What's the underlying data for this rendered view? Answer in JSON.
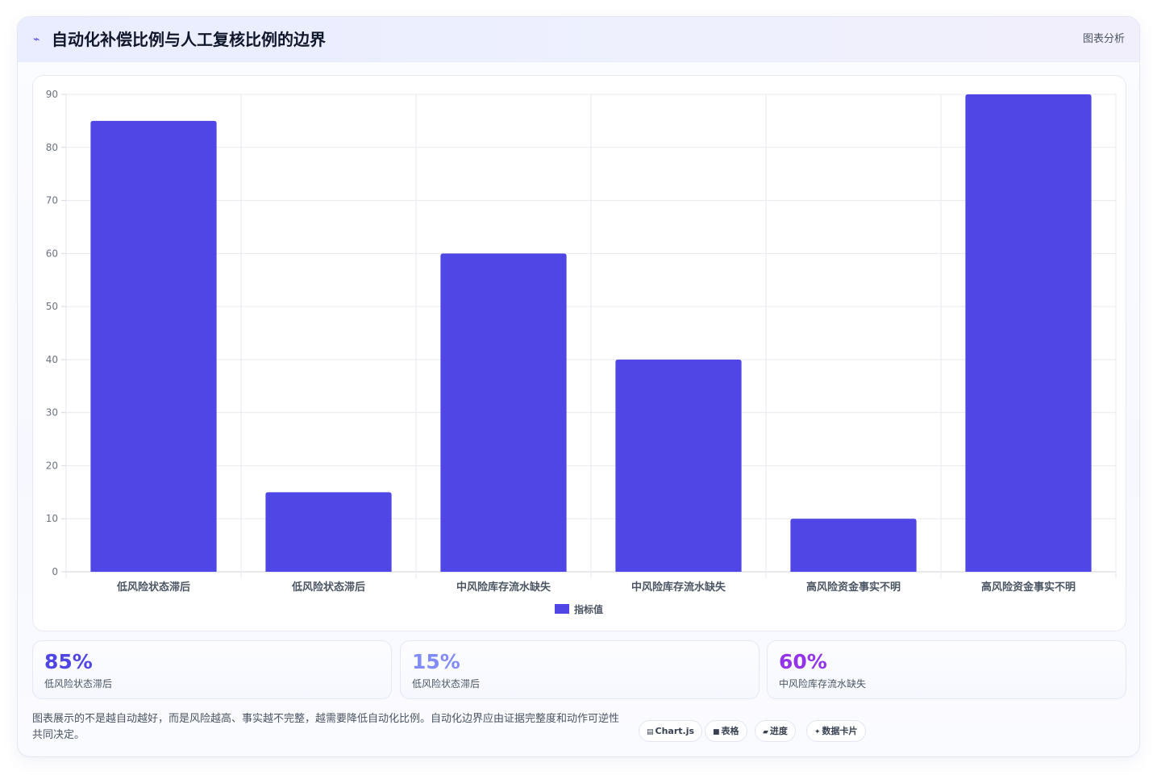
{
  "header": {
    "icon": "pulse-icon",
    "icon_glyph": "⌁",
    "title": "自动化补偿比例与人工复核比例的边界",
    "tag": "图表分析"
  },
  "chart_data": {
    "type": "bar",
    "categories": [
      "低风险状态滞后",
      "低风险状态滞后",
      "中风险库存流水缺失",
      "中风险库存流水缺失",
      "高风险资金事实不明",
      "高风险资金事实不明"
    ],
    "series": [
      {
        "name": "指标值",
        "values": [
          85,
          15,
          60,
          40,
          10,
          90
        ],
        "color": "#5046e5"
      }
    ],
    "ylim": [
      0,
      90
    ],
    "yticks": [
      0,
      10,
      20,
      30,
      40,
      50,
      60,
      70,
      80,
      90
    ],
    "grid": true,
    "legend": "bottom"
  },
  "stats": [
    {
      "value": "85%",
      "label": "低风险状态滞后",
      "color": "#4f46e5"
    },
    {
      "value": "15%",
      "label": "低风险状态滞后",
      "color": "#818cf8"
    },
    {
      "value": "60%",
      "label": "中风险库存流水缺失",
      "color": "#9333ea"
    }
  ],
  "footer": {
    "note": "图表展示的不是越自动越好，而是风险越高、事实越不完整，越需要降低自动化比例。自动化边界应由证据完整度和动作可逆性共同决定。",
    "chips": [
      {
        "icon": "chart-icon",
        "glyph": "▤",
        "label": "Chart.js"
      },
      {
        "icon": "table-icon",
        "glyph": "■",
        "label": "表格"
      },
      {
        "icon": "progress-icon",
        "glyph": "▰",
        "label": "进度"
      },
      {
        "icon": "sparkle-icon",
        "glyph": "✦",
        "label": "数据卡片"
      }
    ]
  }
}
